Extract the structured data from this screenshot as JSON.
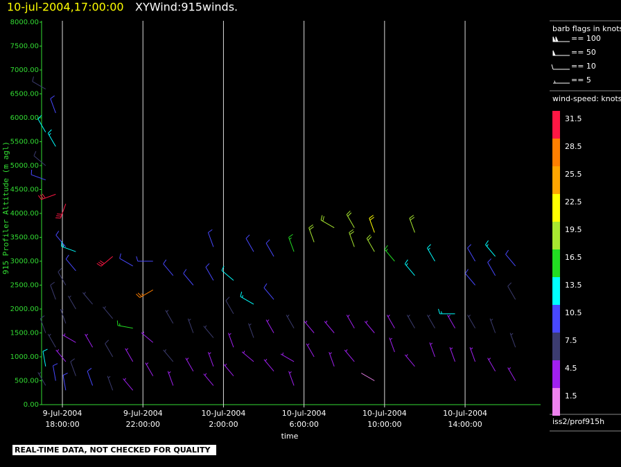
{
  "chart_data": {
    "type": "barb",
    "title": "10-jul-2004,17:00:00",
    "subtitle": "XYWind:915winds.",
    "ylabel": "915 Profiler Altitude (m agl)",
    "xlabel": "time",
    "source": "iss2/prof915h",
    "annotation": "REAL-TIME DATA, NOT CHECKED FOR QUALITY",
    "xlim": [
      "2004-07-09T16:58",
      "2004-07-10T17:45"
    ],
    "xticks": [
      {
        "value": "2004-07-09T18:00",
        "label": [
          "9-Jul-2004",
          "18:00:00"
        ]
      },
      {
        "value": "2004-07-09T22:00",
        "label": [
          "9-Jul-2004",
          "22:00:00"
        ]
      },
      {
        "value": "2004-07-10T02:00",
        "label": [
          "10-Jul-2004",
          "2:00:00"
        ]
      },
      {
        "value": "2004-07-10T06:00",
        "label": [
          "10-Jul-2004",
          "6:00:00"
        ]
      },
      {
        "value": "2004-07-10T10:00",
        "label": [
          "10-Jul-2004",
          "10:00:00"
        ]
      },
      {
        "value": "2004-07-10T14:00",
        "label": [
          "10-Jul-2004",
          "14:00:00"
        ]
      }
    ],
    "ylim": [
      0,
      8000
    ],
    "yticks": [
      {
        "value": 0,
        "label": "0.00"
      },
      {
        "value": 500,
        "label": "500.00"
      },
      {
        "value": 1000,
        "label": "1000.00"
      },
      {
        "value": 1500,
        "label": "1500.00"
      },
      {
        "value": 2000,
        "label": "2000.00"
      },
      {
        "value": 2500,
        "label": "2500.00"
      },
      {
        "value": 3000,
        "label": "3000.00"
      },
      {
        "value": 3500,
        "label": "3500.00"
      },
      {
        "value": 4000,
        "label": "4000.00"
      },
      {
        "value": 4500,
        "label": "4500.00"
      },
      {
        "value": 5000,
        "label": "5000.00"
      },
      {
        "value": 5500,
        "label": "5500.00"
      },
      {
        "value": 6000,
        "label": "6000.00"
      },
      {
        "value": 6500,
        "label": "6500.00"
      },
      {
        "value": 7000,
        "label": "7000.00"
      },
      {
        "value": 7500,
        "label": "7500.00"
      },
      {
        "value": 8000,
        "label": "8000.00"
      }
    ],
    "barb_legend": {
      "title": "barb flags in knots",
      "entries": [
        {
          "value": 100,
          "label": "== 100"
        },
        {
          "value": 50,
          "label": "== 50"
        },
        {
          "value": 10,
          "label": "== 10"
        },
        {
          "value": 5,
          "label": "== 5"
        }
      ]
    },
    "colorbar": {
      "title": "wind-speed: knots",
      "values": [
        31.5,
        28.5,
        25.5,
        22.5,
        19.5,
        16.5,
        13.5,
        10.5,
        7.5,
        4.5,
        1.5
      ],
      "colors": [
        "#ff1744",
        "#ff7f00",
        "#ffa500",
        "#ffff00",
        "#a8e830",
        "#22dd22",
        "#00ffff",
        "#4848ff",
        "#3c3c70",
        "#a020f0",
        "#ee82ee"
      ]
    },
    "barbs": {
      "x": [
        "2004-07-09T17:10",
        "2004-07-09T17:10",
        "2004-07-09T17:10",
        "2004-07-09T17:10",
        "2004-07-09T17:10",
        "2004-07-09T17:10",
        "2004-07-09T17:10",
        "2004-07-09T17:40",
        "2004-07-09T17:40",
        "2004-07-09T17:40",
        "2004-07-09T17:40",
        "2004-07-09T17:40",
        "2004-07-09T17:40",
        "2004-07-09T18:10",
        "2004-07-09T18:10",
        "2004-07-09T18:10",
        "2004-07-09T18:10",
        "2004-07-09T18:10",
        "2004-07-09T18:10",
        "2004-07-09T18:40",
        "2004-07-09T18:40",
        "2004-07-09T18:40",
        "2004-07-09T18:40",
        "2004-07-09T18:40",
        "2004-07-09T19:30",
        "2004-07-09T19:30",
        "2004-07-09T19:30",
        "2004-07-09T20:30",
        "2004-07-09T20:30",
        "2004-07-09T20:30",
        "2004-07-09T20:30",
        "2004-07-09T21:30",
        "2004-07-09T21:30",
        "2004-07-09T21:30",
        "2004-07-09T21:30",
        "2004-07-09T22:30",
        "2004-07-09T22:30",
        "2004-07-09T22:30",
        "2004-07-09T22:30",
        "2004-07-09T23:30",
        "2004-07-09T23:30",
        "2004-07-09T23:30",
        "2004-07-09T23:30",
        "2004-07-10T00:30",
        "2004-07-10T00:30",
        "2004-07-10T00:30",
        "2004-07-10T01:30",
        "2004-07-10T01:30",
        "2004-07-10T01:30",
        "2004-07-10T01:30",
        "2004-07-10T01:30",
        "2004-07-10T02:30",
        "2004-07-10T02:30",
        "2004-07-10T02:30",
        "2004-07-10T02:30",
        "2004-07-10T03:30",
        "2004-07-10T03:30",
        "2004-07-10T03:30",
        "2004-07-10T03:30",
        "2004-07-10T04:30",
        "2004-07-10T04:30",
        "2004-07-10T04:30",
        "2004-07-10T04:30",
        "2004-07-10T05:30",
        "2004-07-10T05:30",
        "2004-07-10T05:30",
        "2004-07-10T05:30",
        "2004-07-10T06:30",
        "2004-07-10T06:30",
        "2004-07-10T06:30",
        "2004-07-10T07:30",
        "2004-07-10T07:30",
        "2004-07-10T07:30",
        "2004-07-10T08:30",
        "2004-07-10T08:30",
        "2004-07-10T08:30",
        "2004-07-10T08:30",
        "2004-07-10T09:30",
        "2004-07-10T09:30",
        "2004-07-10T09:30",
        "2004-07-10T09:30",
        "2004-07-10T10:30",
        "2004-07-10T10:30",
        "2004-07-10T10:30",
        "2004-07-10T11:30",
        "2004-07-10T11:30",
        "2004-07-10T11:30",
        "2004-07-10T11:30",
        "2004-07-10T12:30",
        "2004-07-10T12:30",
        "2004-07-10T12:30",
        "2004-07-10T13:30",
        "2004-07-10T13:30",
        "2004-07-10T13:30",
        "2004-07-10T14:30",
        "2004-07-10T14:30",
        "2004-07-10T14:30",
        "2004-07-10T14:30",
        "2004-07-10T15:30",
        "2004-07-10T15:30",
        "2004-07-10T15:30",
        "2004-07-10T15:30",
        "2004-07-10T16:30",
        "2004-07-10T16:30",
        "2004-07-10T16:30",
        "2004-07-10T16:30"
      ],
      "y": [
        6600,
        5700,
        5000,
        4700,
        1500,
        800,
        400,
        6100,
        5400,
        4400,
        2200,
        1200,
        500,
        4200,
        3300,
        2500,
        1700,
        900,
        300,
        3200,
        2800,
        2000,
        1300,
        600,
        2100,
        1200,
        400,
        3100,
        1800,
        1000,
        300,
        2900,
        1600,
        900,
        300,
        3000,
        2400,
        1300,
        600,
        2700,
        1700,
        900,
        400,
        2500,
        1500,
        700,
        3300,
        2600,
        1400,
        800,
        400,
        2600,
        1900,
        1200,
        600,
        3200,
        2100,
        1400,
        900,
        3100,
        2200,
        1500,
        700,
        3200,
        1600,
        900,
        400,
        3400,
        1500,
        1000,
        3700,
        1500,
        800,
        3700,
        3300,
        1600,
        900,
        3600,
        3200,
        1500,
        500,
        3000,
        1600,
        1100,
        3600,
        2700,
        1600,
        800,
        3000,
        1600,
        1000,
        1900,
        1600,
        900,
        3000,
        2500,
        1600,
        900,
        3100,
        2700,
        1500,
        700,
        2900,
        2200,
        1200,
        500
      ],
      "speed": [
        8,
        12,
        8,
        9,
        8,
        12,
        7,
        11,
        13,
        30,
        8,
        6,
        9,
        31,
        10,
        8,
        7,
        5,
        10,
        13,
        9,
        7,
        5,
        8,
        7,
        5,
        9,
        31,
        6,
        8,
        7,
        9,
        15,
        5,
        4,
        10,
        27,
        3,
        5,
        9,
        7,
        6,
        4,
        9,
        7,
        5,
        10,
        10,
        6,
        5,
        3,
        12,
        8,
        5,
        4,
        11,
        13,
        6,
        3,
        11,
        10,
        5,
        4,
        17,
        6,
        3,
        5,
        18,
        5,
        4,
        19,
        5,
        3,
        20,
        20,
        5,
        4,
        21,
        19,
        4,
        2,
        17,
        5,
        4,
        19,
        14,
        6,
        4,
        13,
        6,
        5,
        13,
        5,
        4,
        9,
        9,
        7,
        5,
        13,
        9,
        7,
        5,
        9,
        8,
        6,
        4
      ],
      "direction": [
        300,
        330,
        310,
        290,
        340,
        350,
        330,
        340,
        330,
        250,
        340,
        330,
        350,
        200,
        320,
        330,
        340,
        320,
        350,
        290,
        320,
        330,
        300,
        340,
        320,
        330,
        340,
        230,
        320,
        330,
        340,
        300,
        280,
        330,
        320,
        270,
        240,
        310,
        330,
        320,
        330,
        320,
        340,
        320,
        340,
        330,
        340,
        330,
        320,
        340,
        320,
        310,
        330,
        340,
        320,
        330,
        300,
        340,
        310,
        330,
        320,
        330,
        320,
        340,
        330,
        300,
        340,
        340,
        320,
        330,
        300,
        320,
        340,
        330,
        340,
        330,
        320,
        340,
        330,
        320,
        300,
        320,
        330,
        340,
        340,
        320,
        330,
        320,
        330,
        330,
        340,
        270,
        330,
        340,
        330,
        320,
        330,
        340,
        320,
        330,
        340,
        330,
        320,
        330,
        340,
        330
      ]
    }
  }
}
